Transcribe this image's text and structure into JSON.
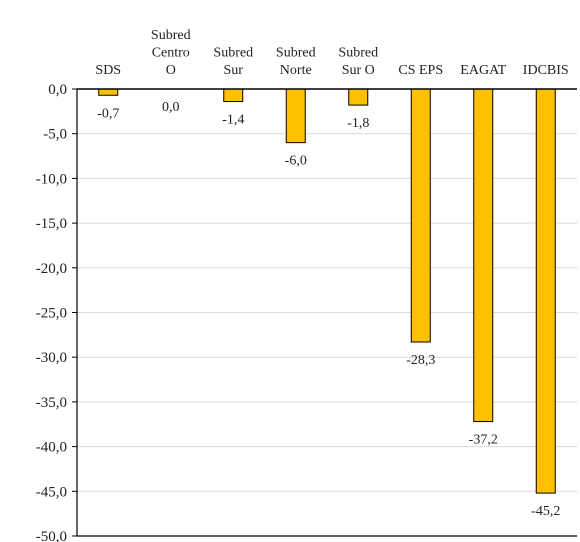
{
  "chart_data": {
    "type": "bar",
    "categories": [
      [
        "SDS"
      ],
      [
        "Subred",
        "Centro",
        "O"
      ],
      [
        "Subred",
        "Sur"
      ],
      [
        "Subred",
        "Norte"
      ],
      [
        "Subred",
        "Sur O"
      ],
      [
        "CS EPS"
      ],
      [
        "EAGAT"
      ],
      [
        "IDCBIS"
      ]
    ],
    "values": [
      -0.7,
      0.0,
      -1.4,
      -6.0,
      -1.8,
      -28.3,
      -37.2,
      -45.2
    ],
    "data_labels": [
      "-0,7",
      "0,0",
      "-1,4",
      "-6,0",
      "-1,8",
      "-28,3",
      "-37,2",
      "-45,2"
    ],
    "ylim": [
      -50,
      0
    ],
    "yticks": [
      0,
      -5,
      -10,
      -15,
      -20,
      -25,
      -30,
      -35,
      -40,
      -45,
      -50
    ],
    "ytick_labels": [
      "0,0",
      "-5,0",
      "-10,0",
      "-15,0",
      "-20,0",
      "-25,0",
      "-30,0",
      "-35,0",
      "-40,0",
      "-45,0",
      "-50,0"
    ],
    "xaxis_position": "top",
    "grid": true,
    "legend": "none",
    "colors": {
      "bar_fill": "#FFC000",
      "bar_stroke": "#000000",
      "grid": "#d9d9d9",
      "axis": "#000000"
    }
  }
}
